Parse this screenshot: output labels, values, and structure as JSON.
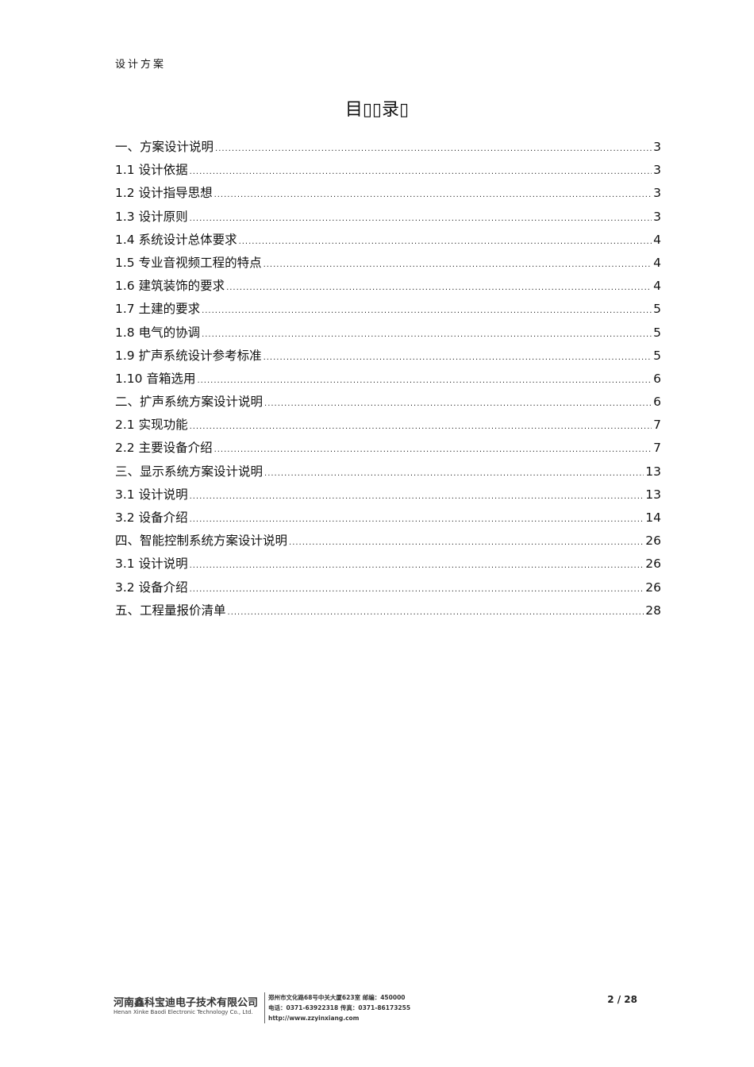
{
  "header": {
    "text": "设计方案"
  },
  "title": "目▯▯录▯",
  "toc": [
    {
      "title": "一、方案设计说明",
      "page": "3"
    },
    {
      "title": "1.1 设计依据",
      "page": "3"
    },
    {
      "title": "1.2  设计指导思想",
      "page": "3"
    },
    {
      "title": "1.3  设计原则",
      "page": "3"
    },
    {
      "title": "1.4  系统设计总体要求",
      "page": "4"
    },
    {
      "title": "1.5 专业音视频工程的特点",
      "page": "4"
    },
    {
      "title": "1.6  建筑装饰的要求",
      "page": "4"
    },
    {
      "title": "1.7  土建的要求",
      "page": "5"
    },
    {
      "title": "1.8  电气的协调",
      "page": "5"
    },
    {
      "title": "1.9 扩声系统设计参考标准",
      "page": "5"
    },
    {
      "title": "1.10 音箱选用",
      "page": "6"
    },
    {
      "title": "二、扩声系统方案设计说明",
      "page": "6"
    },
    {
      "title": "2.1 实现功能",
      "page": "7"
    },
    {
      "title": "2.2 主要设备介绍",
      "page": "7"
    },
    {
      "title": "三、显示系统方案设计说明",
      "page": "13"
    },
    {
      "title": "3.1 设计说明",
      "page": "13"
    },
    {
      "title": "3.2 设备介绍",
      "page": "14"
    },
    {
      "title": "四、智能控制系统方案设计说明",
      "page": "26"
    },
    {
      "title": "3.1 设计说明",
      "page": "26"
    },
    {
      "title": "3.2 设备介绍",
      "page": "26"
    },
    {
      "title": "五、工程量报价清单",
      "page": "28"
    }
  ],
  "footer": {
    "company_cn": "河南鑫科宝迪电子技术有限公司",
    "company_en": "Henan Xinke Baodi Electronic Technology Co., Ltd.",
    "address": "郑州市文化路68号中关大厦623室  邮编：450000",
    "phone": "电话：0371-63922318  传真：0371-86173255",
    "url": "http://www.zzyinxiang.com",
    "page_number": "2  /  28"
  }
}
